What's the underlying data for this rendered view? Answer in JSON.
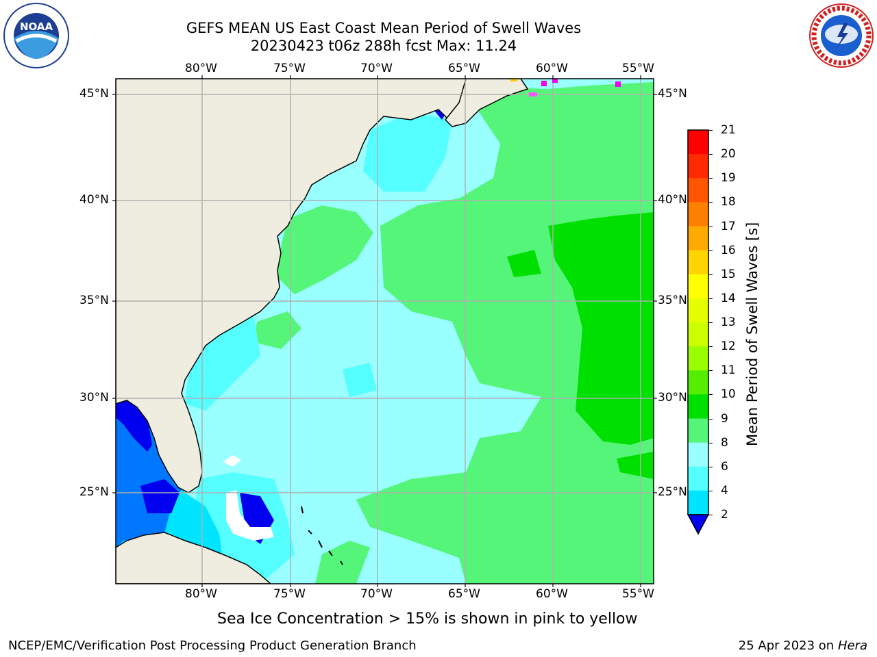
{
  "title": {
    "line1": "GEFS MEAN US East Coast Mean Period of Swell Waves",
    "line2": "20230423 t06z 288h fcst   Max: 11.24"
  },
  "map": {
    "lon_labels": [
      "80°W",
      "75°W",
      "70°W",
      "65°W",
      "60°W",
      "55°W"
    ],
    "lat_labels": [
      "45°N",
      "40°N",
      "35°N",
      "30°N",
      "25°N"
    ],
    "grid_color": "#b0b0b0",
    "land_color": "#efeddf"
  },
  "colorbar": {
    "label": "Mean Period of Swell Waves [s]",
    "ticks": [
      "21",
      "20",
      "19",
      "18",
      "17",
      "16",
      "15",
      "14",
      "13",
      "12",
      "11",
      "10",
      "9",
      "8",
      "6",
      "4",
      "2"
    ],
    "colors": [
      "#ff0000",
      "#ff2a00",
      "#ff5500",
      "#ff8000",
      "#ffaa00",
      "#ffd400",
      "#ffff00",
      "#e6ff00",
      "#ccff00",
      "#99ff00",
      "#55ee00",
      "#00e000",
      "#55f57a",
      "#99ffff",
      "#55ffff",
      "#00e5ff",
      "#0077ff",
      "#0000ee"
    ]
  },
  "caption": "Sea Ice Concentration > 15% is shown in pink to yellow",
  "footer": {
    "left": "NCEP/EMC/Verification Post Processing Product Generation Branch",
    "right_date": "25 Apr 2023 on ",
    "right_host": "Hera"
  },
  "logos": {
    "noaa_text": "NOAA",
    "nws_text": "NATIONAL WEATHER SERVICE"
  }
}
